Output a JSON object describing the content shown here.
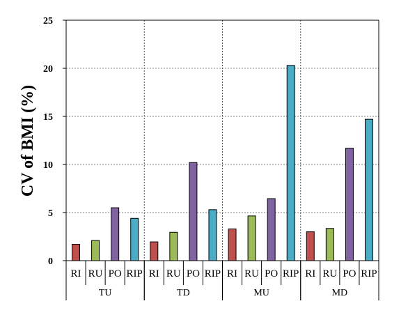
{
  "chart_data": {
    "type": "bar",
    "ylabel": "CV of BMI (%)",
    "xlabel": "",
    "ylim": [
      0,
      25
    ],
    "yticks": [
      0,
      5,
      10,
      15,
      20,
      25
    ],
    "grid": "horizontal dashed",
    "groups": [
      "TU",
      "TD",
      "MU",
      "MD"
    ],
    "categories": [
      "RI",
      "RU",
      "PO",
      "RIP"
    ],
    "colors": {
      "RI": "#c0504d",
      "RU": "#9bbb59",
      "PO": "#8064a2",
      "RIP": "#4bacc6"
    },
    "series": [
      {
        "group": "TU",
        "values": [
          1.7,
          2.1,
          5.5,
          4.4
        ]
      },
      {
        "group": "TD",
        "values": [
          1.95,
          2.95,
          10.2,
          5.3
        ]
      },
      {
        "group": "MU",
        "values": [
          3.3,
          4.65,
          6.45,
          20.3
        ]
      },
      {
        "group": "MD",
        "values": [
          3.0,
          3.35,
          11.7,
          14.7
        ]
      }
    ]
  }
}
